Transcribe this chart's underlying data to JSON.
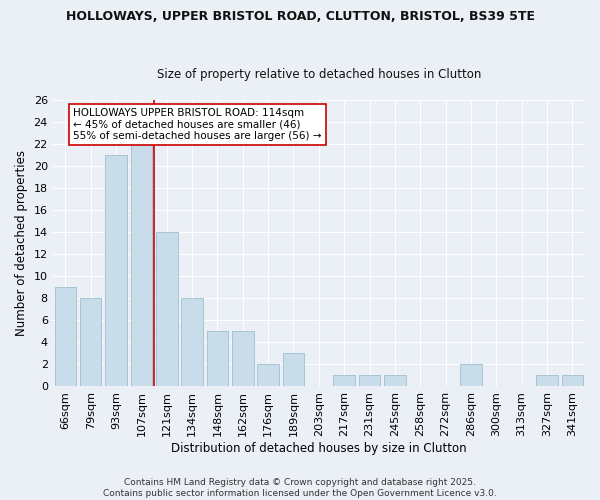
{
  "title": "HOLLOWAYS, UPPER BRISTOL ROAD, CLUTTON, BRISTOL, BS39 5TE",
  "subtitle": "Size of property relative to detached houses in Clutton",
  "xlabel": "Distribution of detached houses by size in Clutton",
  "ylabel": "Number of detached properties",
  "categories": [
    "66sqm",
    "79sqm",
    "93sqm",
    "107sqm",
    "121sqm",
    "134sqm",
    "148sqm",
    "162sqm",
    "176sqm",
    "189sqm",
    "203sqm",
    "217sqm",
    "231sqm",
    "245sqm",
    "258sqm",
    "272sqm",
    "286sqm",
    "300sqm",
    "313sqm",
    "327sqm",
    "341sqm"
  ],
  "values": [
    9,
    8,
    21,
    22,
    14,
    8,
    5,
    5,
    2,
    3,
    0,
    1,
    1,
    1,
    0,
    0,
    2,
    0,
    0,
    1,
    1
  ],
  "bar_color": "#c8dcea",
  "bar_edge_color": "#a0bece",
  "vline_color": "#cc0000",
  "vline_x": 3.5,
  "ylim": [
    0,
    26
  ],
  "yticks": [
    0,
    2,
    4,
    6,
    8,
    10,
    12,
    14,
    16,
    18,
    20,
    22,
    24,
    26
  ],
  "annotation_text": "HOLLOWAYS UPPER BRISTOL ROAD: 114sqm\n← 45% of detached houses are smaller (46)\n55% of semi-detached houses are larger (56) →",
  "annotation_box_color": "#ffffff",
  "annotation_box_edge_color": "#cc0000",
  "footer_text": "Contains HM Land Registry data © Crown copyright and database right 2025.\nContains public sector information licensed under the Open Government Licence v3.0.",
  "bg_color": "#eaf0f6",
  "grid_color": "#ffffff",
  "title_fontsize": 9,
  "subtitle_fontsize": 8.5,
  "xlabel_fontsize": 8.5,
  "ylabel_fontsize": 8.5,
  "tick_fontsize": 8,
  "annot_fontsize": 7.5,
  "footer_fontsize": 6.5
}
